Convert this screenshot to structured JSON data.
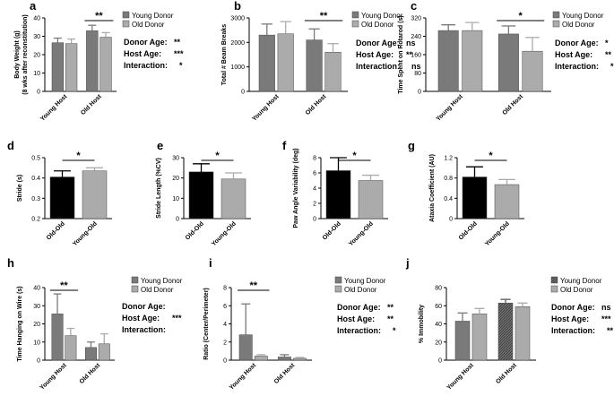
{
  "colors": {
    "dark": "#7a7a7a",
    "light": "#ababab",
    "black": "#000000",
    "hatch": "#555555"
  },
  "chart_data": [
    {
      "id": "a",
      "type": "bar",
      "letter": "a",
      "ylabel_lines": [
        "Body Weight (g)",
        "(8 wks after reconstitution)"
      ],
      "ylim": [
        0,
        40
      ],
      "yticks": [
        0,
        10,
        20,
        30,
        40
      ],
      "categories": [
        "Young Host",
        "Old Host"
      ],
      "series": [
        {
          "name": "Young Donor",
          "values": [
            26.5,
            33
          ],
          "errors": [
            2.5,
            3
          ]
        },
        {
          "name": "Old Donor",
          "values": [
            26,
            29.5
          ],
          "errors": [
            2.5,
            2.5
          ]
        }
      ],
      "legend": [
        "Young Donor",
        "Old Donor"
      ],
      "stats": [
        {
          "label": "Donor Age:",
          "value": "**"
        },
        {
          "label": "Host Age:",
          "value": "***"
        },
        {
          "label": "Interaction:",
          "value": "*"
        }
      ],
      "sig": {
        "text": "**",
        "group": 1
      }
    },
    {
      "id": "b",
      "type": "bar",
      "letter": "b",
      "ylabel_lines": [
        "Total # Beam Breaks"
      ],
      "ylim": [
        0,
        3000
      ],
      "yticks": [
        0,
        1000,
        2000,
        3000
      ],
      "categories": [
        "Young Host",
        "Old Host"
      ],
      "series": [
        {
          "name": "Young Donor",
          "values": [
            2300,
            2100
          ],
          "errors": [
            450,
            450
          ]
        },
        {
          "name": "Old Donor",
          "values": [
            2350,
            1600
          ],
          "errors": [
            500,
            350
          ]
        }
      ],
      "legend": [
        "Young Donor",
        "Old Donor"
      ],
      "stats": [
        {
          "label": "Donor Age:",
          "value": "ns"
        },
        {
          "label": "Host Age:",
          "value": "**"
        },
        {
          "label": "Interaction:",
          "value": "ns"
        }
      ],
      "sig": {
        "text": "**",
        "group": 1
      }
    },
    {
      "id": "c",
      "type": "bar",
      "letter": "c",
      "ylabel_lines": [
        "Time Spent on Rotarod (s)"
      ],
      "ylim": [
        0,
        320
      ],
      "yticks": [
        0,
        80,
        160,
        240,
        320
      ],
      "categories": [
        "Young Host",
        "Old Host"
      ],
      "series": [
        {
          "name": "Young Donor",
          "values": [
            265,
            250
          ],
          "errors": [
            25,
            35
          ]
        },
        {
          "name": "Old Donor",
          "values": [
            265,
            175
          ],
          "errors": [
            35,
            60
          ]
        }
      ],
      "legend": [
        "Young Donor",
        "Old Donor"
      ],
      "stats": [
        {
          "label": "Donor Age:",
          "value": "*"
        },
        {
          "label": "Host Age:",
          "value": "**"
        },
        {
          "label": "Interaction:",
          "value": "*"
        }
      ],
      "sig": {
        "text": "*",
        "group": 1
      }
    },
    {
      "id": "d",
      "type": "bar",
      "letter": "d",
      "ylabel_lines": [
        "Stride (s)"
      ],
      "ylim": [
        0.2,
        0.5
      ],
      "yticks": [
        0.2,
        0.3,
        0.4,
        0.5
      ],
      "categories": [
        "Old-Old",
        "Young-Old"
      ],
      "values": [
        0.405,
        0.435
      ],
      "errors": [
        0.03,
        0.015
      ],
      "sig": {
        "text": "*"
      }
    },
    {
      "id": "e",
      "type": "bar",
      "letter": "e",
      "ylabel_lines": [
        "Stride Length (%CV)"
      ],
      "ylim": [
        0,
        30
      ],
      "yticks": [
        0,
        10,
        20,
        30
      ],
      "categories": [
        "Old-Old",
        "Young-Old"
      ],
      "values": [
        23,
        19.5
      ],
      "errors": [
        4,
        3
      ],
      "sig": {
        "text": "*"
      }
    },
    {
      "id": "f",
      "type": "bar",
      "letter": "f",
      "ylabel_lines": [
        "Paw Angle Variability (deg)"
      ],
      "ylim": [
        0,
        8
      ],
      "yticks": [
        0,
        2,
        4,
        6,
        8
      ],
      "categories": [
        "Old-Old",
        "Young-Old"
      ],
      "values": [
        6.3,
        5
      ],
      "errors": [
        1.7,
        0.7
      ],
      "sig": {
        "text": "*"
      }
    },
    {
      "id": "g",
      "type": "bar",
      "letter": "g",
      "ylabel_lines": [
        "Ataxia Coefficient (AU)"
      ],
      "ylim": [
        0,
        1.2
      ],
      "yticks": [
        0,
        0.4,
        0.8,
        1.2
      ],
      "categories": [
        "Old-Old",
        "Young-Old"
      ],
      "values": [
        0.82,
        0.67
      ],
      "errors": [
        0.2,
        0.1
      ],
      "sig": {
        "text": "*"
      }
    },
    {
      "id": "h",
      "type": "bar",
      "letter": "h",
      "ylabel_lines": [
        "Time Hanging on Wire (s)"
      ],
      "ylim": [
        0,
        40
      ],
      "yticks": [
        0,
        10,
        20,
        30,
        40
      ],
      "categories": [
        "Young Host",
        "Old Host"
      ],
      "series": [
        {
          "name": "Young Donor",
          "values": [
            25.5,
            7
          ],
          "errors": [
            11,
            3
          ]
        },
        {
          "name": "Old Donor",
          "values": [
            13.5,
            9
          ],
          "errors": [
            4,
            5.5
          ]
        }
      ],
      "legend": [
        "Young Donor",
        "Old Donor"
      ],
      "stats": [
        {
          "label": "Donor Age:",
          "value": ""
        },
        {
          "label": "Host Age:",
          "value": "***"
        },
        {
          "label": "Interaction:",
          "value": ""
        }
      ],
      "sig": {
        "text": "**",
        "group": 0
      }
    },
    {
      "id": "i",
      "type": "bar",
      "letter": "i",
      "ylabel_lines": [
        "Ratio (Center/Perimeter)"
      ],
      "ylim": [
        0,
        8
      ],
      "yticks": [
        0,
        2,
        4,
        6,
        8
      ],
      "categories": [
        "Young Host",
        "Old Host"
      ],
      "series": [
        {
          "name": "Young Donor",
          "values": [
            2.8,
            0.35
          ],
          "errors": [
            3.4,
            0.25
          ]
        },
        {
          "name": "Old Donor",
          "values": [
            0.45,
            0.2
          ],
          "errors": [
            0.15,
            0.1
          ]
        }
      ],
      "legend": [
        "Young Donor",
        "Old Donor"
      ],
      "stats": [
        {
          "label": "Donor Age:",
          "value": "**"
        },
        {
          "label": "Host Age:",
          "value": "**"
        },
        {
          "label": "Interaction:",
          "value": "*"
        }
      ],
      "sig": {
        "text": "**",
        "group": 0
      }
    },
    {
      "id": "j",
      "type": "bar",
      "letter": "j",
      "ylabel_lines": [
        "% Immobility"
      ],
      "ylim": [
        0,
        80
      ],
      "yticks": [
        0,
        20,
        40,
        60,
        80
      ],
      "categories": [
        "Young Host",
        "Old Host"
      ],
      "series": [
        {
          "name": "Young Donor",
          "values": [
            43,
            63
          ],
          "errors": [
            9,
            4
          ]
        },
        {
          "name": "Old Donor",
          "values": [
            51,
            59
          ],
          "errors": [
            6,
            4
          ]
        }
      ],
      "legend": [
        "Young Donor",
        "Old Donor"
      ],
      "stats": [
        {
          "label": "Donor Age:",
          "value": "ns"
        },
        {
          "label": "Host Age:",
          "value": "***"
        },
        {
          "label": "Interaction:",
          "value": "**"
        }
      ]
    }
  ]
}
